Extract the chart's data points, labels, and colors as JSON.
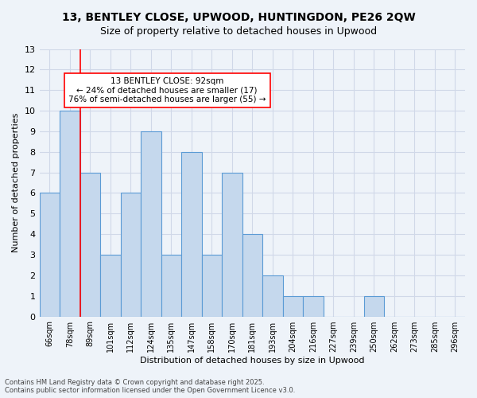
{
  "title": "13, BENTLEY CLOSE, UPWOOD, HUNTINGDON, PE26 2QW",
  "subtitle": "Size of property relative to detached houses in Upwood",
  "xlabel": "Distribution of detached houses by size in Upwood",
  "ylabel": "Number of detached properties",
  "bins": [
    "66sqm",
    "78sqm",
    "89sqm",
    "101sqm",
    "112sqm",
    "124sqm",
    "135sqm",
    "147sqm",
    "158sqm",
    "170sqm",
    "181sqm",
    "193sqm",
    "204sqm",
    "216sqm",
    "227sqm",
    "239sqm",
    "250sqm",
    "262sqm",
    "273sqm",
    "285sqm",
    "296sqm"
  ],
  "counts": [
    6,
    10,
    7,
    3,
    6,
    9,
    3,
    8,
    3,
    7,
    4,
    2,
    1,
    1,
    0,
    0,
    1,
    0,
    0,
    0,
    0
  ],
  "bar_color": "#c5d8ed",
  "bar_edge_color": "#5b9bd5",
  "grid_color": "#d0d8e8",
  "background_color": "#eef3f9",
  "vline_pos": 1.5,
  "vline_color": "red",
  "annotation_text": "13 BENTLEY CLOSE: 92sqm\n← 24% of detached houses are smaller (17)\n76% of semi-detached houses are larger (55) →",
  "annotation_box_color": "white",
  "annotation_box_edge": "red",
  "footer_line1": "Contains HM Land Registry data © Crown copyright and database right 2025.",
  "footer_line2": "Contains public sector information licensed under the Open Government Licence v3.0.",
  "ylim": [
    0,
    13
  ]
}
